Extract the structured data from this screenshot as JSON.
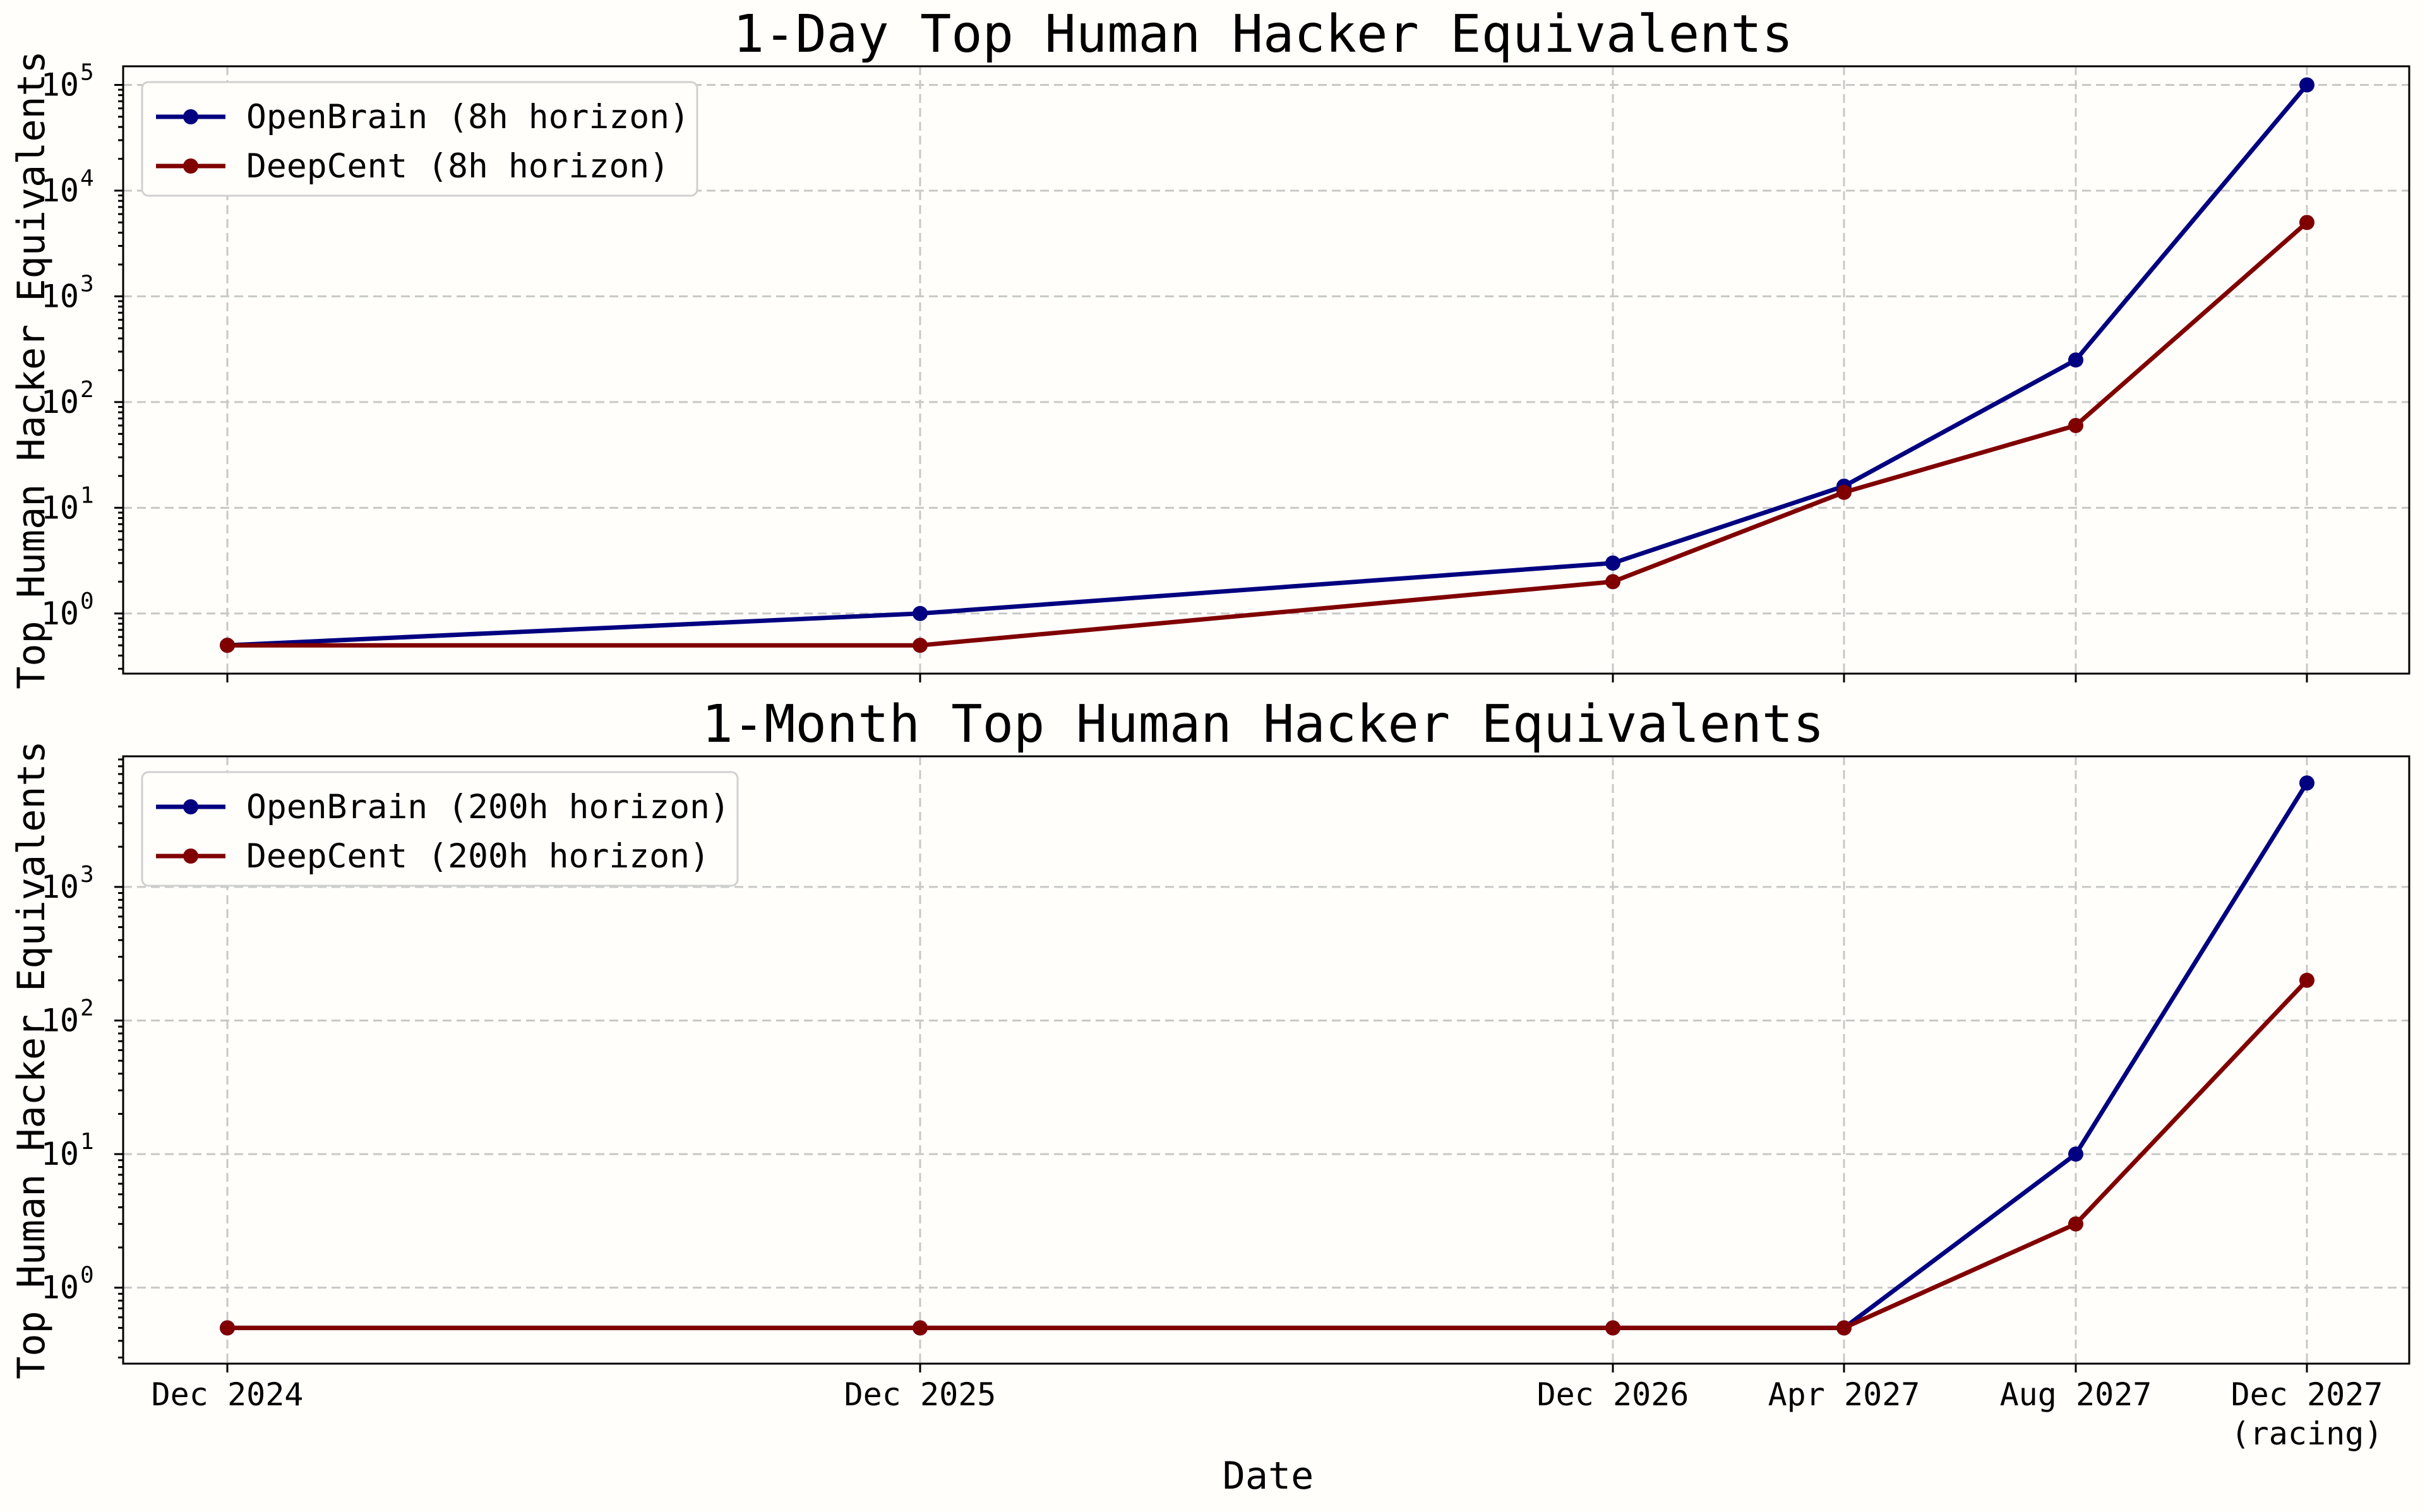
{
  "colors": {
    "background": "#fffefa",
    "openbrain": "#000080",
    "deepcent": "#800000",
    "grid": "#c8c8c8"
  },
  "x_ticks": [
    "Dec 2024",
    "Dec 2025",
    "Dec 2026",
    "Apr 2027",
    "Aug 2027",
    "Dec 2027\n(racing)"
  ],
  "x_axis_label": "Date",
  "chart_data": [
    {
      "type": "line",
      "title": "1-Day Top Human Hacker Equivalents",
      "xlabel": "",
      "ylabel": "Top Human Hacker Equivalents",
      "yscale": "log",
      "ylim": [
        0.27,
        150000
      ],
      "ytick_exponents": [
        0,
        1,
        2,
        3,
        4,
        5
      ],
      "categories": [
        "Dec 2024",
        "Dec 2025",
        "Dec 2026",
        "Apr 2027",
        "Aug 2027",
        "Dec 2027 (racing)"
      ],
      "grid": true,
      "legend_position": "top-left",
      "series": [
        {
          "name": "OpenBrain (8h horizon)",
          "color": "#000080",
          "values": [
            0.5,
            1,
            3,
            16,
            250,
            100000
          ]
        },
        {
          "name": "DeepCent (8h horizon)",
          "color": "#800000",
          "values": [
            0.5,
            0.5,
            2,
            14,
            60,
            5000
          ]
        }
      ]
    },
    {
      "type": "line",
      "title": "1-Month Top Human Hacker Equivalents",
      "xlabel": "Date",
      "ylabel": "Top Human Hacker Equivalents",
      "yscale": "log",
      "ylim": [
        0.27,
        9500
      ],
      "ytick_exponents": [
        0,
        1,
        2,
        3
      ],
      "categories": [
        "Dec 2024",
        "Dec 2025",
        "Dec 2026",
        "Apr 2027",
        "Aug 2027",
        "Dec 2027 (racing)"
      ],
      "grid": true,
      "legend_position": "top-left",
      "series": [
        {
          "name": "OpenBrain (200h horizon)",
          "color": "#000080",
          "values": [
            0.5,
            0.5,
            0.5,
            0.5,
            10,
            6000
          ]
        },
        {
          "name": "DeepCent (200h horizon)",
          "color": "#800000",
          "values": [
            0.5,
            0.5,
            0.5,
            0.5,
            3,
            200
          ]
        }
      ]
    }
  ]
}
